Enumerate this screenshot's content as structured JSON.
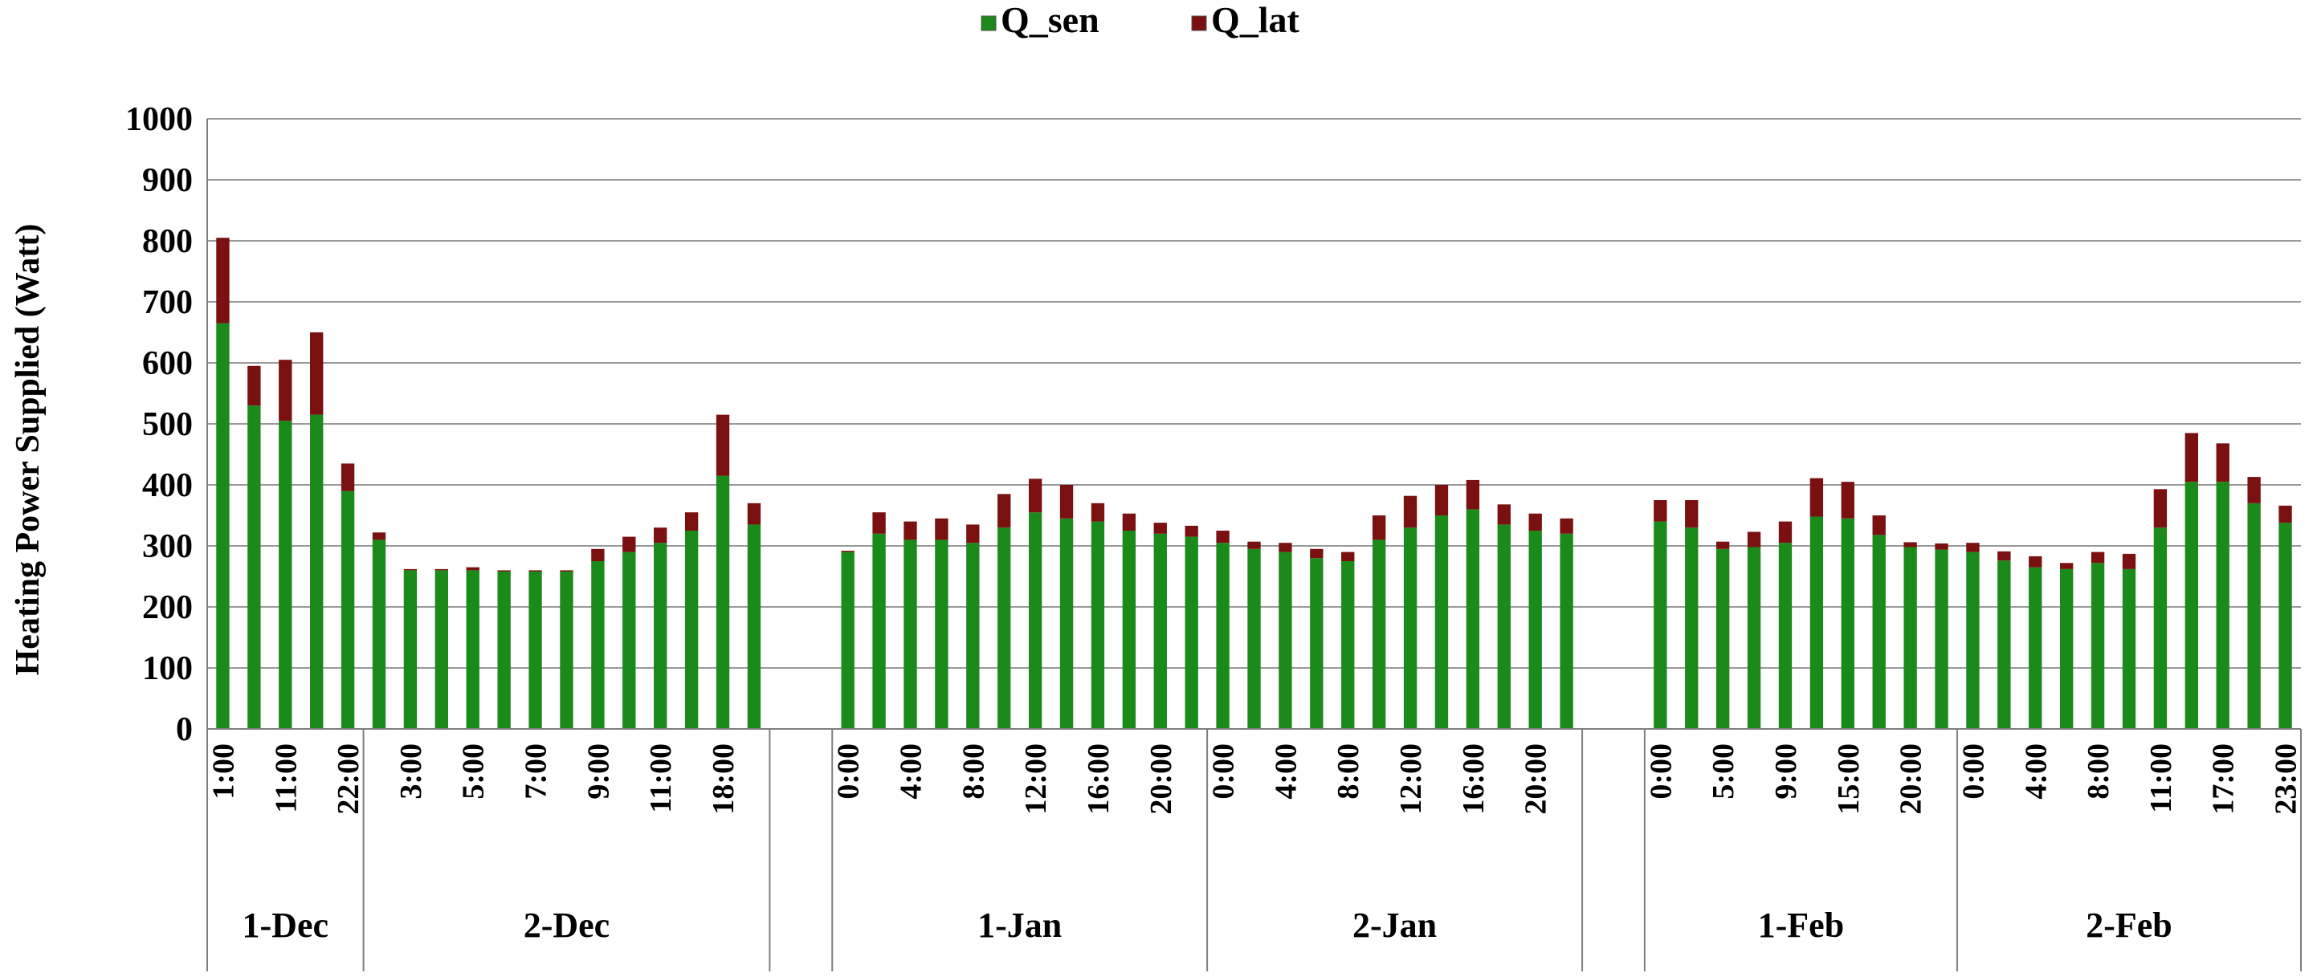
{
  "chart_data": {
    "type": "bar",
    "stacked": true,
    "title": "",
    "xlabel": "",
    "ylabel": "Heating Power Supplied  (Watt)",
    "ylim": [
      0,
      1000
    ],
    "yticks": [
      0,
      100,
      200,
      300,
      400,
      500,
      600,
      700,
      800,
      900,
      1000
    ],
    "grid": true,
    "legend_position": "top-center",
    "colors": {
      "Q_sen": "#1a8a1a",
      "Q_lat": "#7a1010"
    },
    "groups": [
      {
        "label": "1-Dec",
        "count": 5
      },
      {
        "label": "2-Dec",
        "count": 13
      },
      {
        "label": "",
        "count": 2
      },
      {
        "label": "1-Jan",
        "count": 12
      },
      {
        "label": "2-Jan",
        "count": 12
      },
      {
        "label": "",
        "count": 2
      },
      {
        "label": "1-Feb",
        "count": 10
      },
      {
        "label": "2-Feb",
        "count": 11
      }
    ],
    "tick_labels": [
      {
        "index": 0,
        "text": "1:00"
      },
      {
        "index": 2,
        "text": "11:00"
      },
      {
        "index": 4,
        "text": "22:00"
      },
      {
        "index": 6,
        "text": "3:00"
      },
      {
        "index": 8,
        "text": "5:00"
      },
      {
        "index": 10,
        "text": "7:00"
      },
      {
        "index": 12,
        "text": "9:00"
      },
      {
        "index": 14,
        "text": "11:00"
      },
      {
        "index": 16,
        "text": "18:00"
      },
      {
        "index": 20,
        "text": "0:00"
      },
      {
        "index": 22,
        "text": "4:00"
      },
      {
        "index": 24,
        "text": "8:00"
      },
      {
        "index": 26,
        "text": "12:00"
      },
      {
        "index": 28,
        "text": "16:00"
      },
      {
        "index": 30,
        "text": "20:00"
      },
      {
        "index": 32,
        "text": "0:00"
      },
      {
        "index": 34,
        "text": "4:00"
      },
      {
        "index": 36,
        "text": "8:00"
      },
      {
        "index": 38,
        "text": "12:00"
      },
      {
        "index": 40,
        "text": "16:00"
      },
      {
        "index": 42,
        "text": "20:00"
      },
      {
        "index": 46,
        "text": "0:00"
      },
      {
        "index": 48,
        "text": "5:00"
      },
      {
        "index": 50,
        "text": "9:00"
      },
      {
        "index": 52,
        "text": "15:00"
      },
      {
        "index": 54,
        "text": "20:00"
      },
      {
        "index": 56,
        "text": "0:00"
      },
      {
        "index": 58,
        "text": "4:00"
      },
      {
        "index": 60,
        "text": "8:00"
      },
      {
        "index": 62,
        "text": "11:00"
      },
      {
        "index": 64,
        "text": "17:00"
      },
      {
        "index": 66,
        "text": "23:00"
      }
    ],
    "series": [
      {
        "name": "Q_sen",
        "values": [
          665,
          530,
          505,
          515,
          390,
          310,
          260,
          260,
          260,
          258,
          258,
          258,
          275,
          290,
          305,
          325,
          415,
          335,
          null,
          null,
          290,
          320,
          310,
          310,
          305,
          330,
          355,
          345,
          340,
          325,
          320,
          315,
          305,
          295,
          290,
          280,
          275,
          310,
          330,
          350,
          360,
          335,
          325,
          320,
          null,
          null,
          340,
          330,
          295,
          298,
          305,
          348,
          345,
          318,
          298,
          294,
          290,
          276,
          265,
          262,
          272,
          262,
          330,
          405,
          405,
          370,
          338
        ]
      },
      {
        "name": "Q_lat",
        "values": [
          140,
          65,
          100,
          135,
          45,
          12,
          2,
          2,
          5,
          2,
          2,
          2,
          20,
          25,
          25,
          30,
          100,
          35,
          null,
          null,
          2,
          35,
          30,
          35,
          30,
          55,
          55,
          55,
          30,
          28,
          18,
          18,
          20,
          12,
          15,
          15,
          15,
          40,
          52,
          50,
          48,
          33,
          28,
          25,
          null,
          null,
          35,
          45,
          12,
          25,
          35,
          63,
          60,
          32,
          8,
          10,
          15,
          15,
          18,
          10,
          18,
          25,
          63,
          80,
          63,
          43,
          28
        ]
      }
    ]
  }
}
